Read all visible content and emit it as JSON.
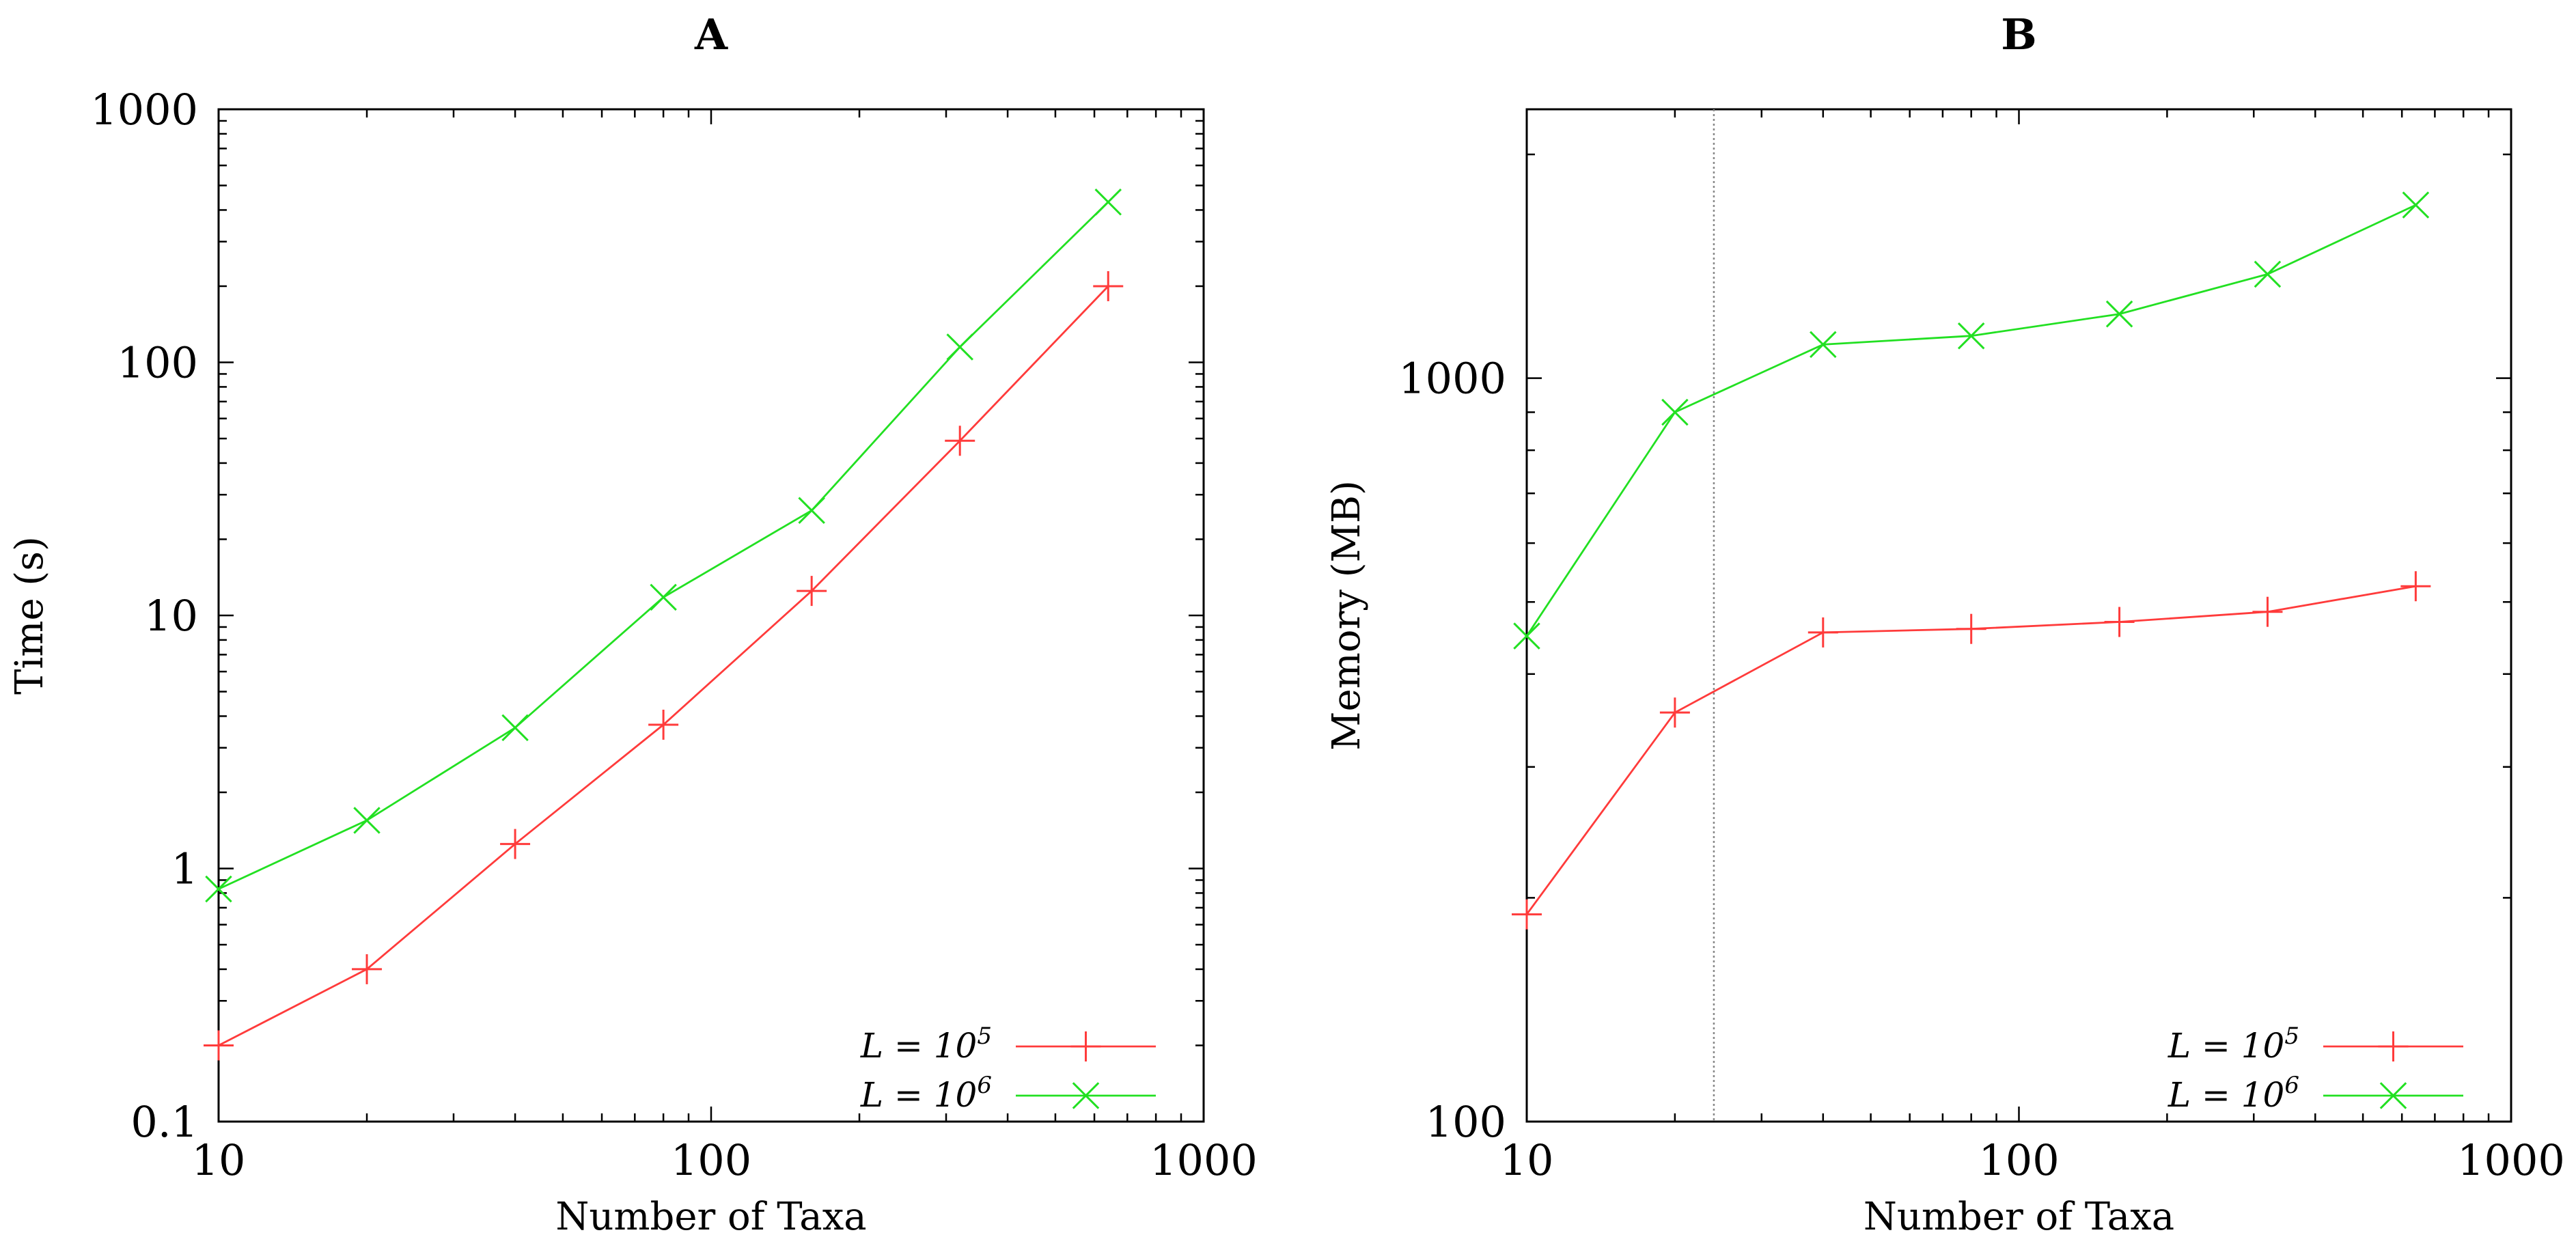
{
  "figure": {
    "colors": {
      "series_a": "#ff3b3b",
      "series_b": "#22e022",
      "axis": "#000000",
      "marker_line": "#888888"
    }
  },
  "chart_data": [
    {
      "panel": "A",
      "type": "line",
      "title": "A",
      "xlabel": "Number of Taxa",
      "ylabel": "Time (s)",
      "xscale": "log",
      "yscale": "log",
      "xlim": [
        10,
        1000
      ],
      "ylim": [
        0.1,
        1000
      ],
      "xticks": [
        10,
        100,
        1000
      ],
      "xtick_labels": [
        "10",
        "100",
        "1000"
      ],
      "yticks": [
        0.1,
        1,
        10,
        100,
        1000
      ],
      "ytick_labels": [
        "0.1",
        "1",
        "10",
        "100",
        "1000"
      ],
      "legend_position": "bottom-right",
      "series": [
        {
          "name": "L = 10^5",
          "label_base": "L = 10",
          "label_exp": "5",
          "marker": "plus",
          "color": "#ff3b3b",
          "x": [
            10,
            20,
            40,
            80,
            160,
            320,
            640
          ],
          "y": [
            0.2,
            0.4,
            1.25,
            3.7,
            12.5,
            49,
            200
          ]
        },
        {
          "name": "L = 10^6",
          "label_base": "L = 10",
          "label_exp": "6",
          "marker": "cross",
          "color": "#22e022",
          "x": [
            10,
            20,
            40,
            80,
            160,
            320,
            640
          ],
          "y": [
            0.83,
            1.55,
            3.6,
            11.8,
            26,
            115,
            430
          ]
        }
      ]
    },
    {
      "panel": "B",
      "type": "line",
      "title": "B",
      "xlabel": "Number of Taxa",
      "ylabel": "Memory (MB)",
      "xscale": "log",
      "yscale": "log",
      "xlim": [
        10,
        1000
      ],
      "ylim": [
        100,
        2300
      ],
      "xticks": [
        10,
        100,
        1000
      ],
      "xtick_labels": [
        "10",
        "100",
        "1000"
      ],
      "yticks": [
        100,
        1000
      ],
      "ytick_labels": [
        "100",
        "1000"
      ],
      "vertical_marker_x": 24,
      "legend_position": "bottom-right",
      "series": [
        {
          "name": "L = 10^5",
          "label_base": "L = 10",
          "label_exp": "5",
          "marker": "plus",
          "color": "#ff3b3b",
          "x": [
            10,
            20,
            40,
            80,
            160,
            320,
            640
          ],
          "y": [
            190,
            355,
            455,
            460,
            470,
            485,
            525
          ]
        },
        {
          "name": "L = 10^6",
          "label_base": "L = 10",
          "label_exp": "6",
          "marker": "cross",
          "color": "#22e022",
          "x": [
            10,
            20,
            40,
            80,
            160,
            320,
            640
          ],
          "y": [
            450,
            900,
            1110,
            1140,
            1220,
            1380,
            1710
          ]
        }
      ]
    }
  ]
}
